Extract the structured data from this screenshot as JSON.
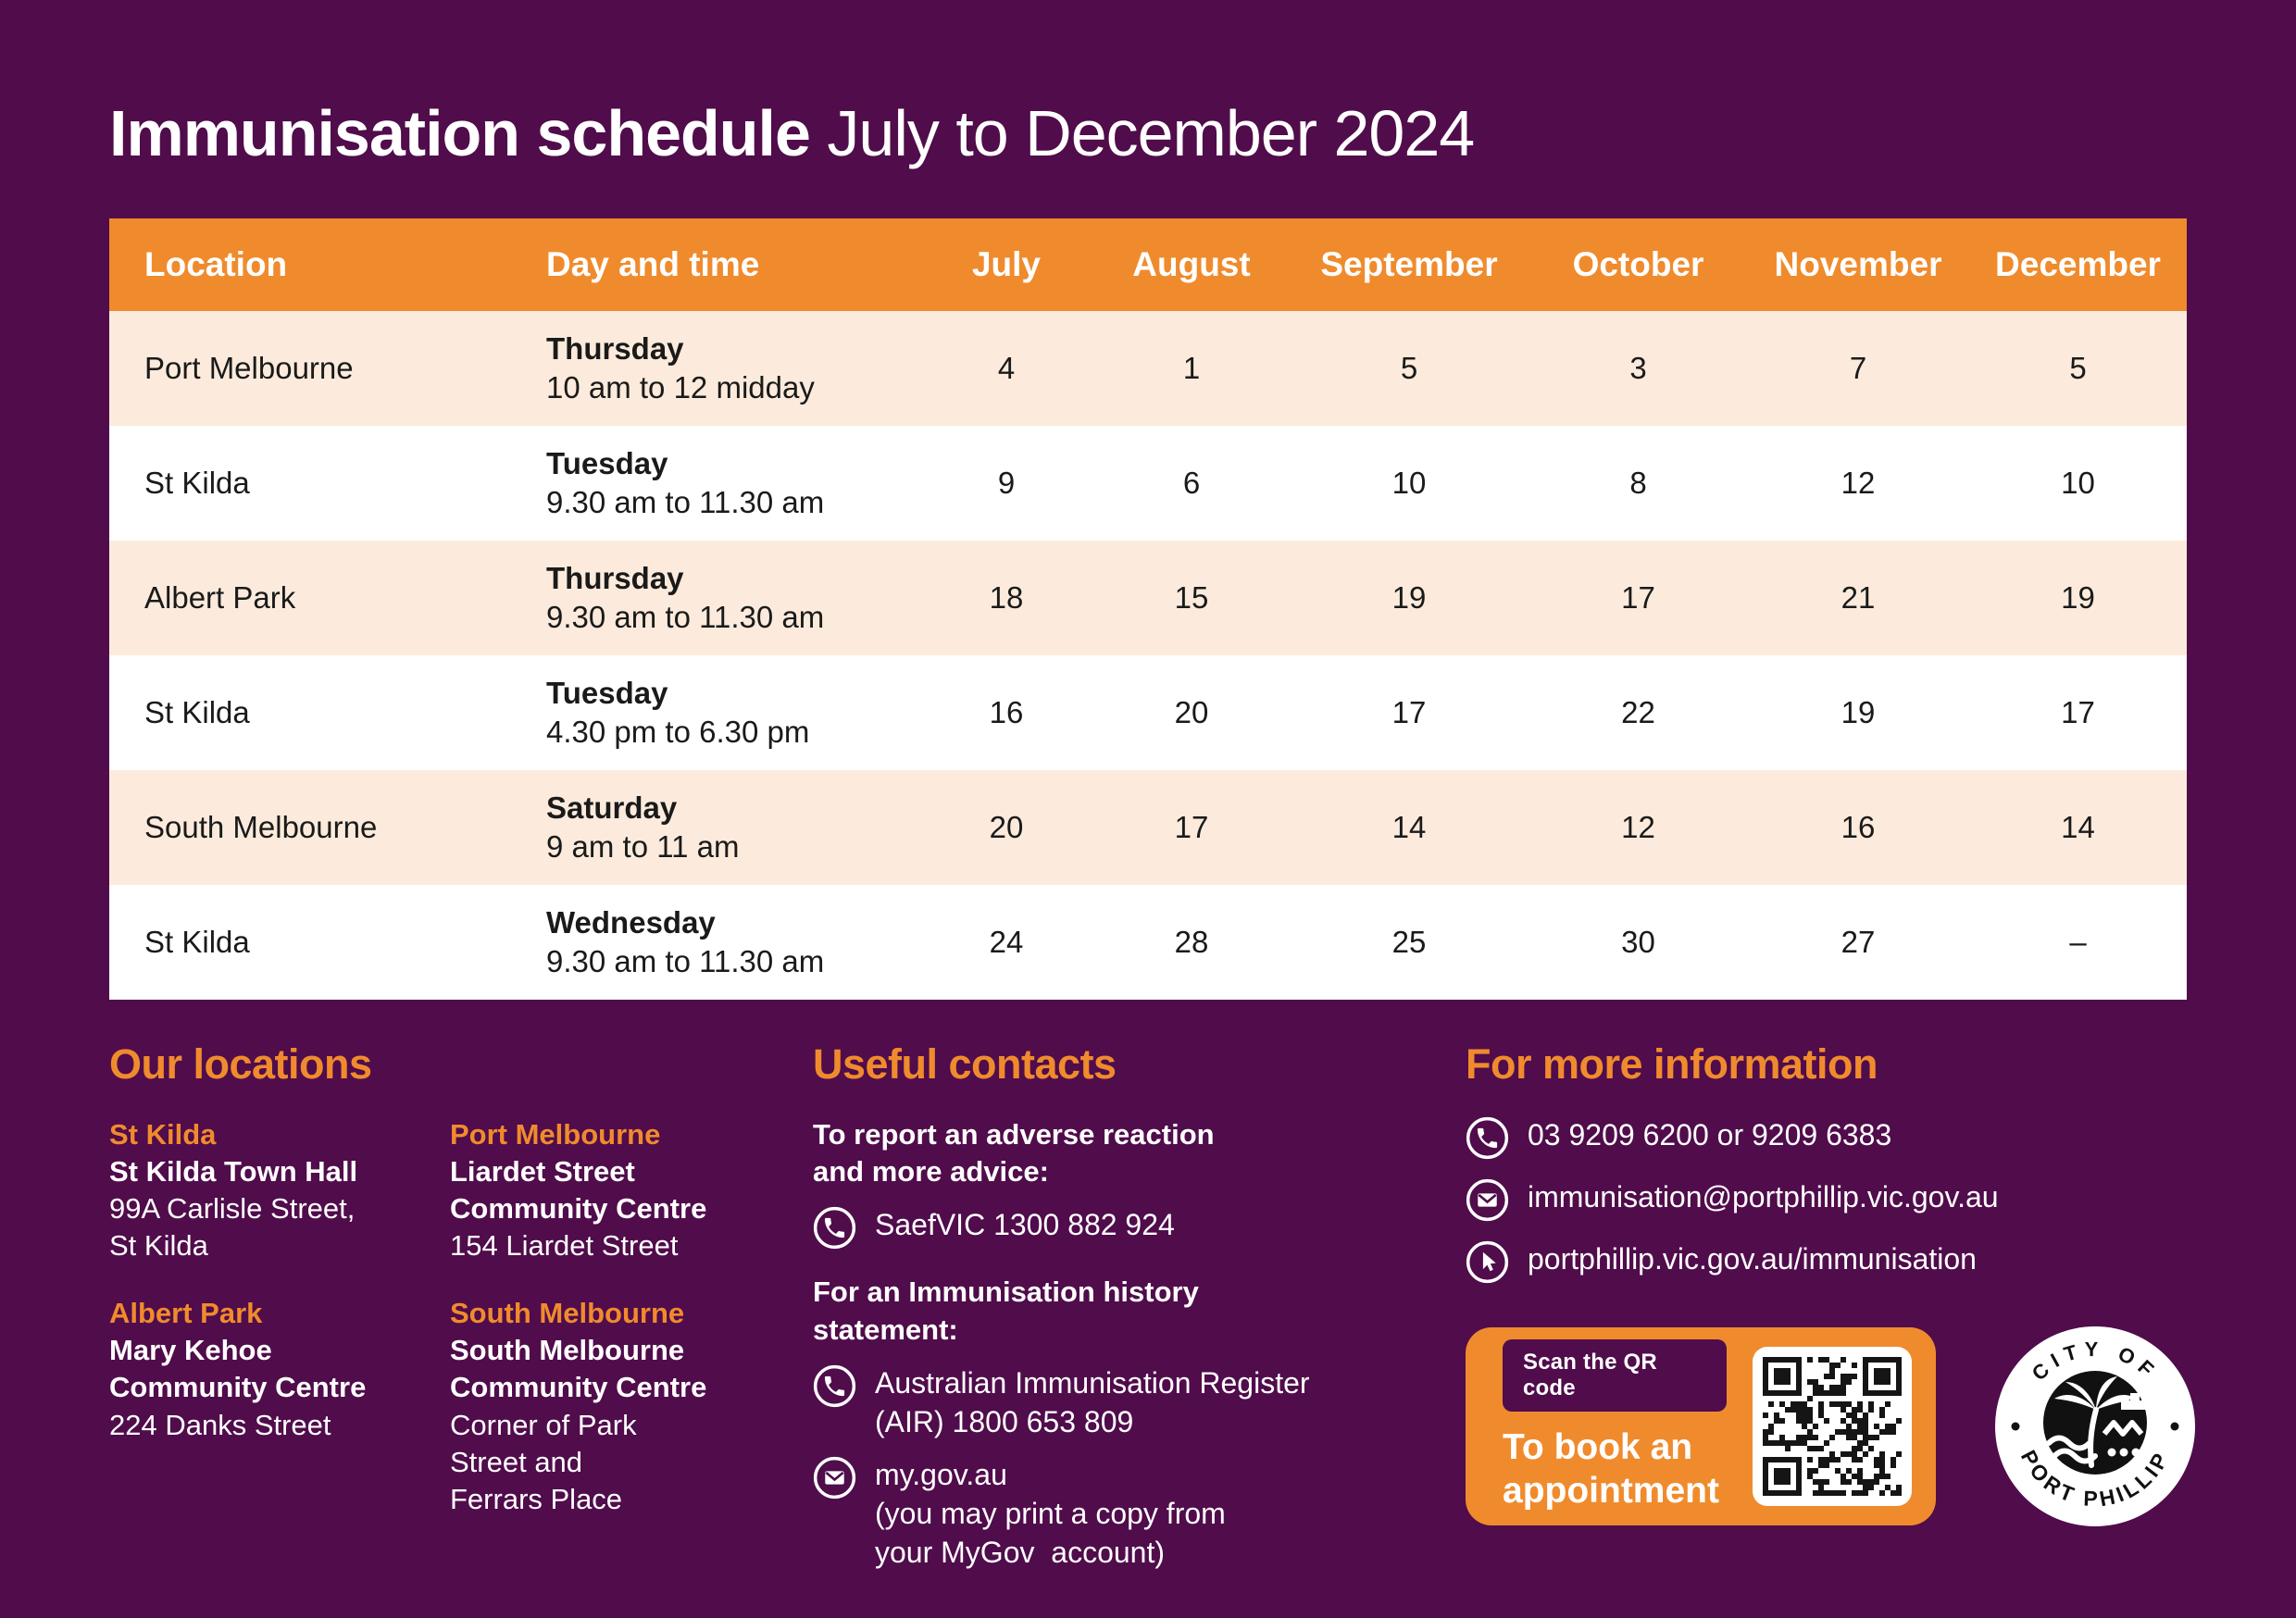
{
  "colors": {
    "background_purple": "#500C4B",
    "accent_orange": "#F08B2D",
    "row_peach": "#FCEBDC",
    "row_white": "#FFFFFF",
    "text_dark": "#1A1A1A"
  },
  "header": {
    "title_bold": "Immunisation schedule",
    "title_light": "July to December 2024"
  },
  "table": {
    "headers": [
      "Location",
      "Day and time",
      "July",
      "August",
      "September",
      "October",
      "November",
      "December"
    ],
    "rows": [
      {
        "location": "Port Melbourne",
        "day": "Thursday",
        "time": "10 am to 12 midday",
        "dates": [
          "4",
          "1",
          "5",
          "3",
          "7",
          "5"
        ]
      },
      {
        "location": "St Kilda",
        "day": "Tuesday",
        "time": "9.30 am to 11.30 am",
        "dates": [
          "9",
          "6",
          "10",
          "8",
          "12",
          "10"
        ]
      },
      {
        "location": "Albert Park",
        "day": "Thursday",
        "time": "9.30 am to 11.30 am",
        "dates": [
          "18",
          "15",
          "19",
          "17",
          "21",
          "19"
        ]
      },
      {
        "location": "St Kilda",
        "day": "Tuesday",
        "time": "4.30 pm to 6.30 pm",
        "dates": [
          "16",
          "20",
          "17",
          "22",
          "19",
          "17"
        ]
      },
      {
        "location": "South Melbourne",
        "day": "Saturday",
        "time": "9 am to 11 am",
        "dates": [
          "20",
          "17",
          "14",
          "12",
          "16",
          "14"
        ]
      },
      {
        "location": "St Kilda",
        "day": "Wednesday",
        "time": "9.30 am to 11.30 am",
        "dates": [
          "24",
          "28",
          "25",
          "30",
          "27",
          "–"
        ]
      }
    ]
  },
  "locations": {
    "heading": "Our locations",
    "items": [
      {
        "suburb": "St Kilda",
        "name": "St Kilda Town Hall",
        "address": "99A Carlisle Street,\nSt Kilda"
      },
      {
        "suburb": "Port Melbourne",
        "name": "Liardet Street\nCommunity Centre",
        "address": "154 Liardet Street"
      },
      {
        "suburb": "Albert Park",
        "name": "Mary Kehoe\nCommunity Centre",
        "address": "224 Danks Street"
      },
      {
        "suburb": "South Melbourne",
        "name": "South Melbourne\nCommunity Centre",
        "address": "Corner of Park\nStreet and\nFerrars Place"
      }
    ]
  },
  "contacts": {
    "heading": "Useful contacts",
    "adverse_label": "To report an adverse reaction\nand more advice:",
    "adverse_contact": "SaefVIC 1300 882 924",
    "history_label": "For an Immunisation history\nstatement:",
    "air_contact": "Australian Immunisation Register\n(AIR) 1800 653 809",
    "mygov": "my.gov.au",
    "mygov_note": "(you may print a copy from\nyour MyGov  account)"
  },
  "info": {
    "heading": "For more information",
    "phone": "03 9209 6200 or 9209 6383",
    "email": "immunisation@portphillip.vic.gov.au",
    "website": "portphillip.vic.gov.au/immunisation"
  },
  "qr": {
    "pill": "Scan the QR code",
    "text": "To book an\nappointment"
  },
  "logo": {
    "top": "CITY OF",
    "bottom": "PORT PHILLIP"
  }
}
